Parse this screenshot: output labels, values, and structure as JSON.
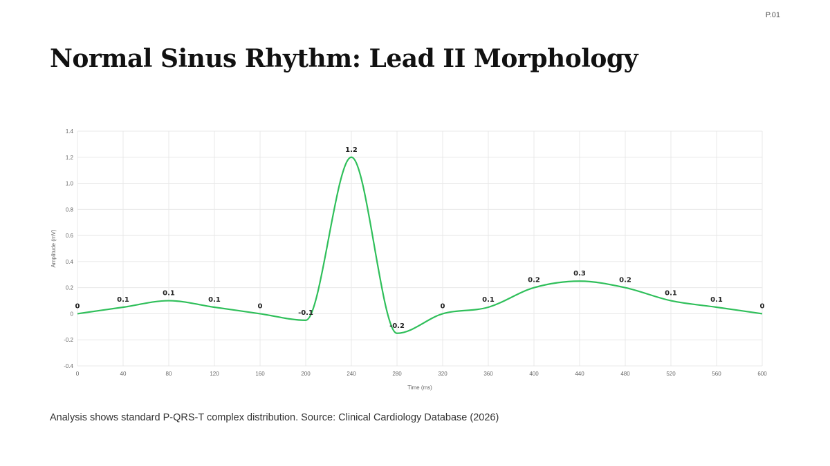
{
  "page": {
    "number": "P.01",
    "title": "Normal Sinus Rhythm: Lead II Morphology",
    "caption": "Analysis shows standard P-QRS-T complex distribution. Source: Clinical Cardiology Database (2026)"
  },
  "colors": {
    "line": "#2fbf5a",
    "grid": "#e8e8e8",
    "axis_text": "#666666"
  },
  "chart_data": {
    "type": "line",
    "title": "",
    "xlabel": "Time (ms)",
    "ylabel": "Amplitude (mV)",
    "xlim": [
      0,
      600
    ],
    "ylim": [
      -0.4,
      1.4
    ],
    "x_ticks": [
      0,
      40,
      80,
      120,
      160,
      200,
      240,
      280,
      320,
      360,
      400,
      440,
      480,
      520,
      560,
      600
    ],
    "y_ticks": [
      -0.4,
      -0.2,
      0,
      0.2,
      0.4,
      0.6,
      0.8,
      1.0,
      1.2,
      1.4
    ],
    "y_tick_labels": [
      "-0.4",
      "-0.2",
      "0",
      "0.2",
      "0.4",
      "0.6",
      "0.8",
      "1.0",
      "1.2",
      "1.4"
    ],
    "grid": true,
    "legend": "none",
    "series": [
      {
        "x": [
          0,
          40,
          80,
          120,
          160,
          200,
          240,
          280,
          320,
          360,
          400,
          440,
          480,
          520,
          560,
          600
        ],
        "y": [
          0,
          0.05,
          0.1,
          0.05,
          0,
          -0.05,
          1.2,
          -0.15,
          0,
          0.05,
          0.2,
          0.25,
          0.2,
          0.1,
          0.05,
          0
        ],
        "data_labels": [
          "0",
          "0.1",
          "0.1",
          "0.1",
          "0",
          "-0.1",
          "1.2",
          "-0.2",
          "0",
          "0.1",
          "0.2",
          "0.3",
          "0.2",
          "0.1",
          "0.1",
          "0"
        ]
      }
    ]
  }
}
